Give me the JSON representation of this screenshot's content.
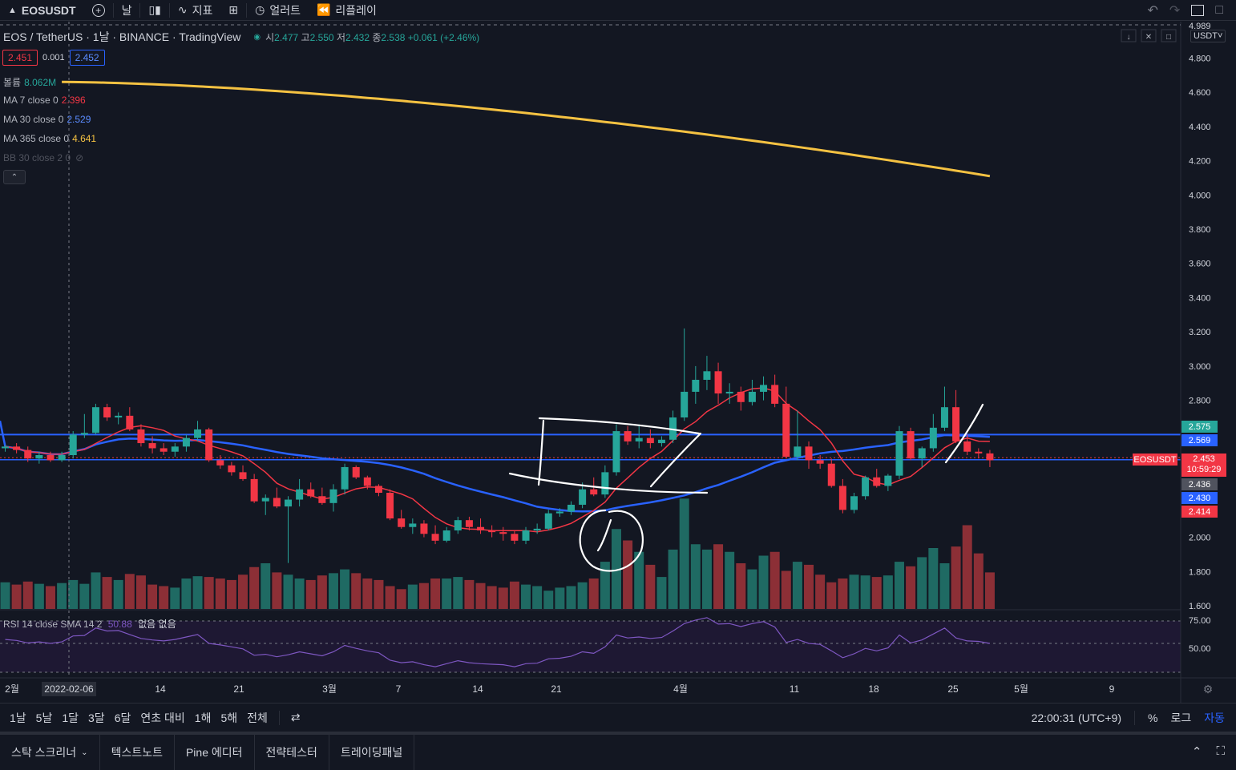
{
  "toolbar": {
    "symbol": "EOSUSDT",
    "interval": "날",
    "indicators": "지표",
    "alerts": "얼러트",
    "replay": "리플레이"
  },
  "legend": {
    "title": "EOS / TetherUS · 1날 · BINANCE · TradingView",
    "open_label": "시",
    "open": "2.477",
    "high_label": "고",
    "high": "2.550",
    "low_label": "저",
    "low": "2.432",
    "close_label": "종",
    "close": "2.538",
    "change": "+0.061 (+2.46%)",
    "bid": "2.451",
    "spread": "0.001",
    "ask": "2.452"
  },
  "indicators": [
    {
      "name": "볼륨",
      "value": "8.062M",
      "color": "#26a69a"
    },
    {
      "name": "MA 7 close 0",
      "value": "2.396",
      "color": "#f23645"
    },
    {
      "name": "MA 30 close 0",
      "value": "2.529",
      "color": "#2962ff"
    },
    {
      "name": "MA 365 close 0",
      "value": "4.641",
      "color": "#f5c242"
    },
    {
      "name": "BB 30 close 2 0",
      "value": "",
      "color": "#50535e"
    }
  ],
  "rsi": {
    "label": "RSI 14 close SMA 14 2",
    "value": "50.88",
    "extra": "없음 없음"
  },
  "price_axis": {
    "currency": "USDT",
    "ticks": [
      "4.989",
      "4.800",
      "4.600",
      "4.400",
      "4.200",
      "4.000",
      "3.800",
      "3.600",
      "3.400",
      "3.200",
      "3.000",
      "2.800",
      "2.600",
      "2.400",
      "2.200",
      "2.000",
      "1.800",
      "1.600"
    ],
    "rsi_ticks": [
      "75.00",
      "50.00"
    ],
    "tags": {
      "t2575": "2.575",
      "t2569": "2.569",
      "t2453": "2.453",
      "countdown": "10:59:29",
      "t2436": "2.436",
      "t2430": "2.430",
      "t2414": "2.414",
      "symbol": "EOSUSDT"
    }
  },
  "time_axis": [
    "2월",
    "2022-02-06",
    "14",
    "21",
    "3월",
    "7",
    "14",
    "21",
    "4월",
    "11",
    "18",
    "25",
    "5월",
    "9"
  ],
  "timeframes": [
    "1날",
    "5날",
    "1달",
    "3달",
    "6달",
    "연초 대비",
    "1해",
    "5해",
    "전체"
  ],
  "clock": "22:00:31 (UTC+9)",
  "bottom_right": {
    "percent": "%",
    "log": "로그",
    "auto": "자동"
  },
  "panel_tabs": [
    "스탁 스크리너",
    "텍스트노트",
    "Pine 에디터",
    "전략테스터",
    "트레이딩패널"
  ],
  "colors": {
    "up": "#26a69a",
    "down": "#f23645",
    "ma7": "#f23645",
    "ma30": "#2962ff",
    "ma365": "#f5c242",
    "rsi": "#7e57c2"
  },
  "chart_data": {
    "type": "candlestick",
    "title": "EOS / TetherUS · 1날 · BINANCE",
    "ylim": [
      1.6,
      4.989
    ],
    "candles": [
      [
        2.52,
        2.54,
        2.5,
        2.53
      ],
      [
        2.53,
        2.55,
        2.49,
        2.51
      ],
      [
        2.51,
        2.53,
        2.44,
        2.46
      ],
      [
        2.46,
        2.5,
        2.43,
        2.48
      ],
      [
        2.48,
        2.5,
        2.44,
        2.45
      ],
      [
        2.45,
        2.5,
        2.44,
        2.48
      ],
      [
        2.48,
        2.62,
        2.46,
        2.6
      ],
      [
        2.6,
        2.72,
        2.58,
        2.61
      ],
      [
        2.61,
        2.78,
        2.6,
        2.76
      ],
      [
        2.76,
        2.78,
        2.68,
        2.7
      ],
      [
        2.7,
        2.73,
        2.66,
        2.71
      ],
      [
        2.71,
        2.76,
        2.62,
        2.63
      ],
      [
        2.63,
        2.66,
        2.53,
        2.55
      ],
      [
        2.55,
        2.59,
        2.49,
        2.52
      ],
      [
        2.52,
        2.55,
        2.48,
        2.5
      ],
      [
        2.5,
        2.55,
        2.47,
        2.53
      ],
      [
        2.53,
        2.6,
        2.5,
        2.58
      ],
      [
        2.58,
        2.68,
        2.56,
        2.63
      ],
      [
        2.63,
        2.64,
        2.44,
        2.45
      ],
      [
        2.45,
        2.48,
        2.4,
        2.42
      ],
      [
        2.42,
        2.44,
        2.36,
        2.38
      ],
      [
        2.38,
        2.42,
        2.33,
        2.34
      ],
      [
        2.34,
        2.37,
        2.2,
        2.21
      ],
      [
        2.21,
        2.25,
        2.13,
        2.23
      ],
      [
        2.23,
        2.29,
        2.17,
        2.18
      ],
      [
        2.18,
        2.24,
        1.85,
        2.22
      ],
      [
        2.22,
        2.34,
        2.18,
        2.28
      ],
      [
        2.28,
        2.32,
        2.23,
        2.24
      ],
      [
        2.24,
        2.29,
        2.19,
        2.2
      ],
      [
        2.2,
        2.31,
        2.15,
        2.28
      ],
      [
        2.28,
        2.43,
        2.25,
        2.41
      ],
      [
        2.41,
        2.42,
        2.34,
        2.35
      ],
      [
        2.35,
        2.36,
        2.28,
        2.3
      ],
      [
        2.3,
        2.31,
        2.24,
        2.26
      ],
      [
        2.26,
        2.28,
        2.1,
        2.11
      ],
      [
        2.11,
        2.16,
        2.05,
        2.06
      ],
      [
        2.06,
        2.11,
        2.02,
        2.08
      ],
      [
        2.08,
        2.1,
        2.0,
        2.02
      ],
      [
        2.02,
        2.07,
        1.96,
        1.98
      ],
      [
        1.98,
        2.06,
        1.97,
        2.04
      ],
      [
        2.04,
        2.12,
        2.02,
        2.1
      ],
      [
        2.1,
        2.12,
        2.04,
        2.06
      ],
      [
        2.06,
        2.11,
        2.02,
        2.04
      ],
      [
        2.04,
        2.07,
        2.0,
        2.03
      ],
      [
        2.03,
        2.06,
        1.98,
        2.02
      ],
      [
        2.02,
        2.04,
        1.96,
        1.98
      ],
      [
        1.98,
        2.06,
        1.96,
        2.04
      ],
      [
        2.04,
        2.08,
        2.02,
        2.05
      ],
      [
        2.05,
        2.16,
        2.04,
        2.14
      ],
      [
        2.14,
        2.17,
        2.12,
        2.15
      ],
      [
        2.15,
        2.21,
        2.13,
        2.19
      ],
      [
        2.19,
        2.32,
        2.17,
        2.28
      ],
      [
        2.28,
        2.35,
        2.24,
        2.25
      ],
      [
        2.25,
        2.42,
        2.23,
        2.38
      ],
      [
        2.38,
        2.66,
        2.36,
        2.62
      ],
      [
        2.62,
        2.65,
        2.54,
        2.56
      ],
      [
        2.56,
        2.66,
        2.52,
        2.58
      ],
      [
        2.58,
        2.63,
        2.52,
        2.55
      ],
      [
        2.55,
        2.59,
        2.53,
        2.57
      ],
      [
        2.57,
        2.74,
        2.55,
        2.7
      ],
      [
        2.7,
        3.22,
        2.68,
        2.85
      ],
      [
        2.85,
        3.0,
        2.78,
        2.92
      ],
      [
        2.92,
        3.06,
        2.86,
        2.97
      ],
      [
        2.97,
        3.02,
        2.78,
        2.84
      ],
      [
        2.84,
        2.9,
        2.78,
        2.85
      ],
      [
        2.85,
        2.88,
        2.74,
        2.79
      ],
      [
        2.79,
        2.92,
        2.77,
        2.85
      ],
      [
        2.85,
        2.94,
        2.8,
        2.89
      ],
      [
        2.89,
        2.95,
        2.76,
        2.78
      ],
      [
        2.78,
        2.88,
        2.46,
        2.47
      ],
      [
        2.47,
        2.74,
        2.45,
        2.53
      ],
      [
        2.53,
        2.56,
        2.4,
        2.45
      ],
      [
        2.45,
        2.48,
        2.4,
        2.43
      ],
      [
        2.43,
        2.46,
        2.29,
        2.3
      ],
      [
        2.3,
        2.34,
        2.14,
        2.16
      ],
      [
        2.16,
        2.26,
        2.14,
        2.24
      ],
      [
        2.24,
        2.36,
        2.22,
        2.35
      ],
      [
        2.35,
        2.4,
        2.29,
        2.3
      ],
      [
        2.3,
        2.37,
        2.27,
        2.36
      ],
      [
        2.36,
        2.65,
        2.34,
        2.62
      ],
      [
        2.62,
        2.64,
        2.45,
        2.46
      ],
      [
        2.46,
        2.53,
        2.41,
        2.52
      ],
      [
        2.52,
        2.72,
        2.5,
        2.64
      ],
      [
        2.64,
        2.88,
        2.62,
        2.76
      ],
      [
        2.76,
        2.86,
        2.55,
        2.56
      ],
      [
        2.56,
        2.6,
        2.48,
        2.5
      ],
      [
        2.5,
        2.52,
        2.46,
        2.49
      ],
      [
        2.49,
        2.51,
        2.41,
        2.45
      ]
    ],
    "ma365_start": 4.66,
    "ma365_end": 4.11
  }
}
